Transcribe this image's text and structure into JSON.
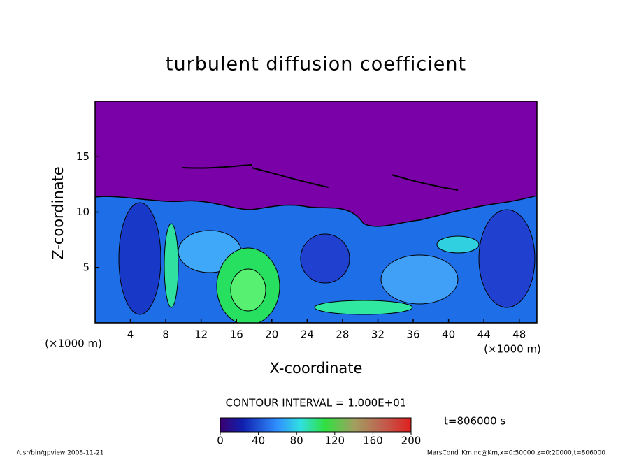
{
  "chart_data": {
    "type": "contour",
    "title": "turbulent diffusion coefficient",
    "x_label": "X-coordinate",
    "y_label": "Z-coordinate",
    "x_unit": "(×1000 m)",
    "xlim": [
      0,
      50
    ],
    "xticks": [
      4,
      8,
      12,
      16,
      20,
      24,
      28,
      32,
      36,
      40,
      44,
      48
    ],
    "ylim": [
      0,
      20
    ],
    "yticks": [
      5,
      10,
      15
    ],
    "contour_interval": "CONTOUR INTERVAL = 1.000E+01",
    "time_label": "t=806000 s",
    "clim": [
      0,
      200
    ],
    "cticks": [
      0,
      40,
      80,
      120,
      160,
      200
    ],
    "footer_left": "/usr/bin/gpview  2008-11-21",
    "footer_right": "MarsCond_Km.nc@Km,x=0:50000,z=0:20000,t=806000"
  }
}
